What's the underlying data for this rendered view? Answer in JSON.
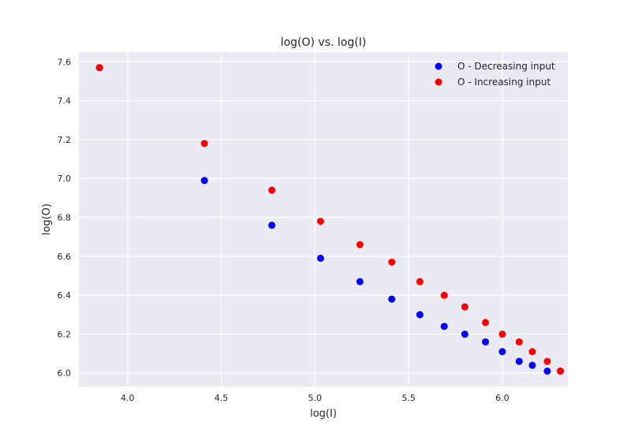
{
  "chart_data": {
    "type": "scatter",
    "title": "log(O) vs. log(I)",
    "xlabel": "log(I)",
    "ylabel": "log(O)",
    "xlim": [
      3.74,
      6.35
    ],
    "ylim": [
      5.93,
      7.65
    ],
    "xticks": [
      4.0,
      4.5,
      5.0,
      5.5,
      6.0
    ],
    "xtick_labels": [
      "4.0",
      "4.5",
      "5.0",
      "5.5",
      "6.0"
    ],
    "yticks": [
      6.0,
      6.2,
      6.4,
      6.6,
      6.8,
      7.0,
      7.2,
      7.4,
      7.6
    ],
    "ytick_labels": [
      "6.0",
      "6.2",
      "6.4",
      "6.6",
      "6.8",
      "7.0",
      "7.2",
      "7.4",
      "7.6"
    ],
    "grid": true,
    "legend_position": "top-right",
    "series": [
      {
        "name": "O - Decreasing input",
        "color": "#0000ff",
        "x": [
          3.85,
          4.41,
          4.77,
          5.03,
          5.24,
          5.41,
          5.56,
          5.69,
          5.8,
          5.91,
          6.0,
          6.09,
          6.16,
          6.24,
          6.31
        ],
        "y": [
          7.57,
          6.99,
          6.76,
          6.59,
          6.47,
          6.38,
          6.3,
          6.24,
          6.2,
          6.16,
          6.11,
          6.06,
          6.04,
          6.01,
          6.01
        ]
      },
      {
        "name": "O - Increasing input",
        "color": "#ff0000",
        "x": [
          3.85,
          4.41,
          4.77,
          5.03,
          5.24,
          5.41,
          5.56,
          5.69,
          5.8,
          5.91,
          6.0,
          6.09,
          6.16,
          6.24,
          6.31
        ],
        "y": [
          7.57,
          7.18,
          6.94,
          6.78,
          6.66,
          6.57,
          6.47,
          6.4,
          6.34,
          6.26,
          6.2,
          6.16,
          6.11,
          6.06,
          6.01
        ]
      }
    ]
  }
}
